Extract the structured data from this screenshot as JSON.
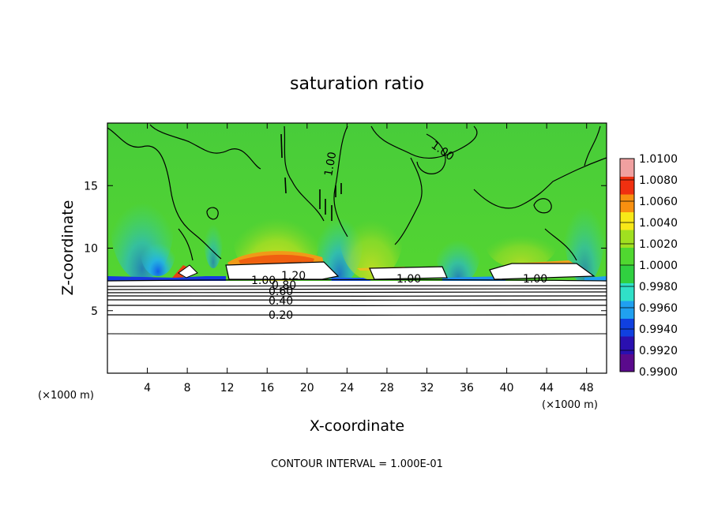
{
  "chart_data": {
    "type": "heatmap",
    "title": "saturation ratio",
    "xlabel": "X-coordinate",
    "ylabel": "Z-coordinate",
    "x_unit": "(×1000 m)",
    "xlim": [
      0,
      50
    ],
    "ylim": [
      0,
      20
    ],
    "x_ticks": [
      4,
      8,
      12,
      16,
      20,
      24,
      28,
      32,
      36,
      40,
      44,
      48
    ],
    "x_tick_labels": [
      "4",
      "8",
      "12",
      "16",
      "20",
      "24",
      "28",
      "32",
      "36",
      "40",
      "44",
      "48"
    ],
    "y_ticks": [
      5,
      10,
      15
    ],
    "y_tick_labels": [
      "5",
      "10",
      "15"
    ],
    "colorbar": {
      "min": 0.99,
      "max": 1.01,
      "labels": [
        "1.0100",
        "1.0080",
        "1.0060",
        "1.0040",
        "1.0020",
        "1.0000",
        "0.9980",
        "0.9960",
        "0.9940",
        "0.9920",
        "0.9900"
      ],
      "colors": [
        "#5a0a8c",
        "#2a10b0",
        "#1040e0",
        "#20a0f0",
        "#30e0c8",
        "#30d040",
        "#50d830",
        "#a0e020",
        "#f8e818",
        "#f89010",
        "#f03010",
        "#f0a0a0"
      ]
    },
    "contour_labels": [
      "1.20",
      "1.00",
      "0.80",
      "0.60",
      "0.40",
      "0.20",
      "1.00",
      "1.00",
      "1.00",
      "1.00"
    ],
    "boundary_layer_top_km": 7.5,
    "contour_levels_below": [
      1.2,
      1.0,
      0.8,
      0.6,
      0.4,
      0.2
    ],
    "grid": false,
    "legend_position": "right",
    "footer": "CONTOUR INTERVAL = 1.000E-01"
  }
}
